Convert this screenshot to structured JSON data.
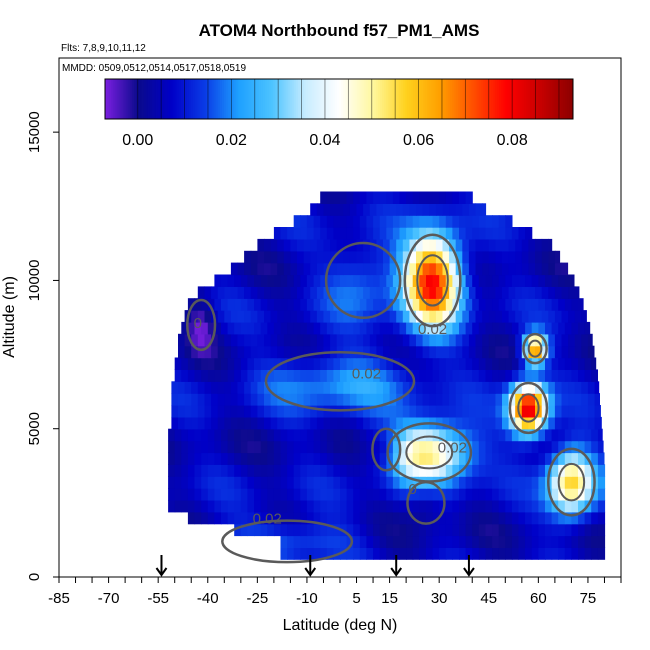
{
  "chart_data": {
    "type": "heatmap",
    "title": "ATOM4 Northbound f57_PM1_AMS",
    "flights_note": "Flts: 7,8,9,10,11,12",
    "dates_note": "MMDD: 0509,0512,0514,0517,0518,0519",
    "xlabel": "Latitude (deg N)",
    "ylabel": "Altitude (m)",
    "xlim": [
      -85,
      85
    ],
    "ylim": [
      0,
      17500
    ],
    "x_ticks": [
      -85,
      -70,
      -55,
      -40,
      -25,
      -10,
      5,
      15,
      30,
      45,
      60,
      75
    ],
    "y_ticks": [
      0,
      5000,
      10000,
      15000
    ],
    "colorbar": {
      "range": [
        -0.007,
        0.093
      ],
      "ticks": [
        0.0,
        0.02,
        0.04,
        0.06,
        0.08
      ],
      "tick_labels": [
        "0.00",
        "0.02",
        "0.04",
        "0.06",
        "0.08"
      ],
      "colors": [
        "#7b1fe0",
        "#0a0a8c",
        "#0000c8",
        "#0a3ce6",
        "#1ea0ff",
        "#4dc4ff",
        "#c8ecff",
        "#ffffff",
        "#fff8a0",
        "#ffd21e",
        "#ffa000",
        "#ff5000",
        "#ff0000",
        "#c80000",
        "#8c0000"
      ]
    },
    "background_value": 0.006,
    "coverage": [
      {
        "alt": 1000,
        "lat_min": -18,
        "lat_max": 80
      },
      {
        "alt": 2000,
        "lat_min": -52,
        "lat_max": 80
      },
      {
        "alt": 3500,
        "lat_min": -52,
        "lat_max": 80
      },
      {
        "alt": 5000,
        "lat_min": -51,
        "lat_max": 79
      },
      {
        "alt": 6500,
        "lat_min": -50,
        "lat_max": 78
      },
      {
        "alt": 8000,
        "lat_min": -48,
        "lat_max": 76
      },
      {
        "alt": 9200,
        "lat_min": -45,
        "lat_max": 73
      },
      {
        "alt": 10000,
        "lat_min": -35,
        "lat_max": 70
      },
      {
        "alt": 11000,
        "lat_min": -25,
        "lat_max": 64
      },
      {
        "alt": 11800,
        "lat_min": -14,
        "lat_max": 52
      },
      {
        "alt": 12400,
        "lat_min": -6,
        "lat_max": 40
      }
    ],
    "features": [
      {
        "lat": 28,
        "alt": 10000,
        "peak": 0.078,
        "dlat": 6,
        "dalt": 1100
      },
      {
        "lat": 59,
        "alt": 7700,
        "peak": 0.07,
        "dlat": 2.5,
        "dalt": 350
      },
      {
        "lat": 57,
        "alt": 5700,
        "peak": 0.085,
        "dlat": 4,
        "dalt": 600
      },
      {
        "lat": 27,
        "alt": 4200,
        "peak": 0.055,
        "dlat": 9,
        "dalt": 700
      },
      {
        "lat": 70,
        "alt": 3200,
        "peak": 0.058,
        "dlat": 5,
        "dalt": 800
      },
      {
        "lat": 0,
        "alt": 6600,
        "peak": 0.022,
        "dlat": 16,
        "dalt": 700
      },
      {
        "lat": -16,
        "alt": 1200,
        "peak": 0.02,
        "dlat": 14,
        "dalt": 500
      },
      {
        "lat": 7,
        "alt": 10000,
        "peak": 0.02,
        "dlat": 8,
        "dalt": 900
      },
      {
        "lat": -42,
        "alt": 8500,
        "peak": -0.004,
        "dlat": 3,
        "dalt": 600
      },
      {
        "lat": 14,
        "alt": 4300,
        "peak": -0.004,
        "dlat": 3,
        "dalt": 500
      },
      {
        "lat": 26,
        "alt": 2500,
        "peak": -0.002,
        "dlat": 4,
        "dalt": 500
      }
    ],
    "contour_labels": [
      {
        "text": "0.02",
        "lat": 28,
        "alt": 8200
      },
      {
        "text": "0.02",
        "lat": 8,
        "alt": 6700
      },
      {
        "text": "0.02",
        "lat": -22,
        "alt": 1800
      },
      {
        "text": "0.02",
        "lat": 34,
        "alt": 4200
      },
      {
        "text": "0",
        "lat": -43,
        "alt": 8400
      },
      {
        "text": "0",
        "lat": 22,
        "alt": 2800
      }
    ],
    "arrows_lat": [
      -54,
      -9,
      17,
      39
    ]
  }
}
